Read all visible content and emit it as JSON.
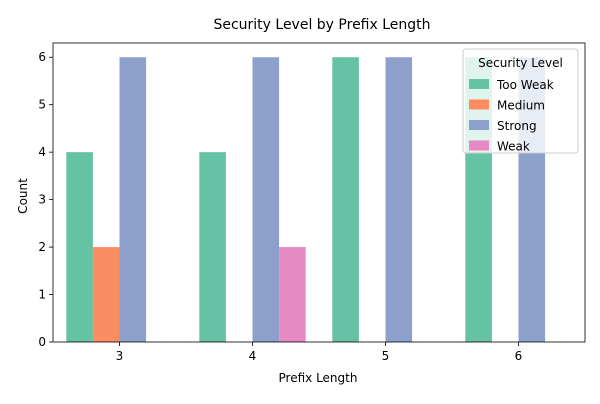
{
  "chart_data": {
    "type": "bar",
    "title": "Security Level by Prefix Length",
    "xlabel": "Prefix Length",
    "ylabel": "Count",
    "categories": [
      "3",
      "4",
      "5",
      "6"
    ],
    "ylim": [
      0,
      6.3
    ],
    "yticks": [
      0,
      1,
      2,
      3,
      4,
      5,
      6
    ],
    "grid": false,
    "legend": {
      "title": "Security Level",
      "placement": "top-right"
    },
    "series": [
      {
        "name": "Too Weak",
        "color": "#66c2a5",
        "values": [
          4,
          4,
          6,
          6
        ]
      },
      {
        "name": "Medium",
        "color": "#fc8d62",
        "values": [
          2,
          null,
          null,
          null
        ]
      },
      {
        "name": "Strong",
        "color": "#8da0cb",
        "values": [
          6,
          6,
          6,
          6
        ]
      },
      {
        "name": "Weak",
        "color": "#e78ac3",
        "values": [
          null,
          2,
          null,
          null
        ]
      }
    ]
  }
}
